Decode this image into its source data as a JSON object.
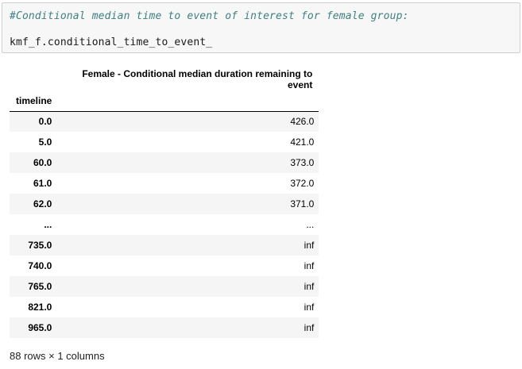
{
  "code_cell": {
    "comment": "#Conditional median time to event of interest for female group:",
    "code": "kmf_f.conditional_time_to_event_"
  },
  "dataframe": {
    "column_header": "Female - Conditional median duration remaining to event",
    "index_name": "timeline",
    "rows": [
      {
        "index": "0.0",
        "value": "426.0"
      },
      {
        "index": "5.0",
        "value": "421.0"
      },
      {
        "index": "60.0",
        "value": "373.0"
      },
      {
        "index": "61.0",
        "value": "372.0"
      },
      {
        "index": "62.0",
        "value": "371.0"
      },
      {
        "index": "...",
        "value": "..."
      },
      {
        "index": "735.0",
        "value": "inf"
      },
      {
        "index": "740.0",
        "value": "inf"
      },
      {
        "index": "765.0",
        "value": "inf"
      },
      {
        "index": "821.0",
        "value": "inf"
      },
      {
        "index": "965.0",
        "value": "inf"
      }
    ],
    "shape_note": "88 rows × 1 columns"
  }
}
